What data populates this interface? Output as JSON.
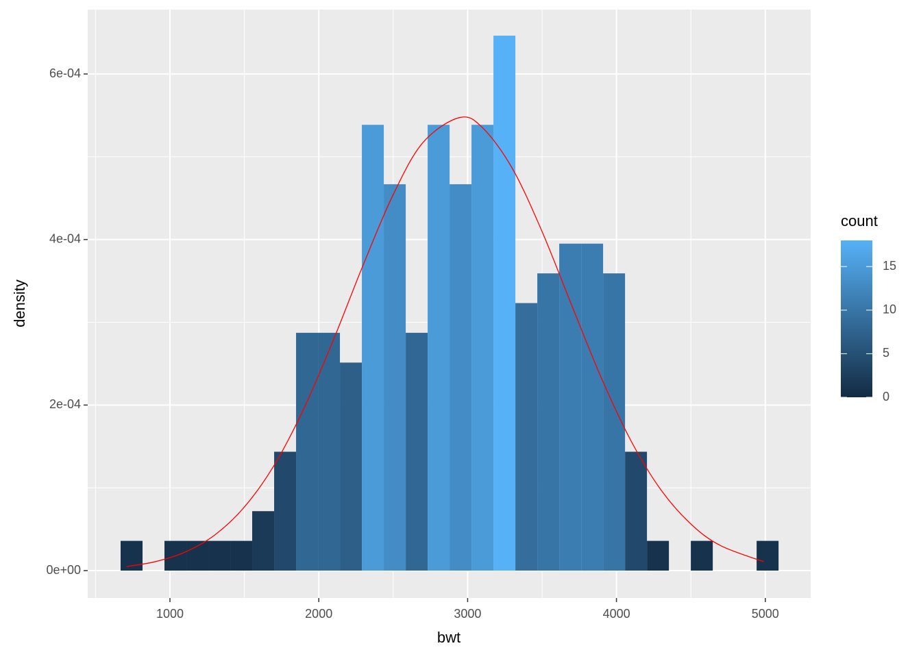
{
  "chart_data": {
    "type": "histogram",
    "xlabel": "bwt",
    "ylabel": "density",
    "bins": [
      668.5,
      815.9,
      963.2,
      1110.6,
      1257.9,
      1405.3,
      1552.6,
      1700.0,
      1847.3,
      1994.7,
      2142.0,
      2289.4,
      2436.7,
      2584.1,
      2731.4,
      2878.8,
      3026.1,
      3173.5,
      3320.8,
      3468.2,
      3615.5,
      3762.9,
      3910.2,
      4057.6,
      4204.9,
      4352.3,
      4499.6,
      4647.0,
      4794.3,
      4941.7,
      5089.0
    ],
    "values": [
      3.591e-05,
      0,
      3.591e-05,
      3.591e-05,
      3.591e-05,
      3.591e-05,
      7.181e-05,
      0.0001436,
      0.0002873,
      0.0002873,
      0.0002513,
      0.0005386,
      0.0004668,
      0.0002873,
      0.0005386,
      0.0004668,
      0.0005386,
      0.0006463,
      0.0003232,
      0.0003591,
      0.000395,
      0.000395,
      0.0003591,
      0.0001436,
      3.591e-05,
      0,
      3.591e-05,
      0,
      0,
      3.591e-05
    ],
    "fill_values": [
      1,
      0,
      1,
      1,
      1,
      1,
      2,
      4,
      8,
      8,
      7,
      15,
      13,
      8,
      15,
      13,
      15,
      18,
      9,
      10,
      11,
      11,
      10,
      4,
      1,
      0,
      1,
      0,
      0,
      1
    ],
    "fill_title": "count",
    "fill_range": [
      0,
      18
    ],
    "fill_ticks": [
      0,
      5,
      10,
      15
    ],
    "fill_colors": [
      "#132B43",
      "#56B1F7"
    ],
    "curve": {
      "color": "#FF0000",
      "x": [
        709,
        900,
        1100,
        1300,
        1500,
        1700,
        1900,
        2100,
        2300,
        2500,
        2700,
        2945,
        3100,
        3300,
        3500,
        3700,
        3900,
        4100,
        4300,
        4500,
        4700,
        4990
      ],
      "values": [
        4.96e-06,
        1.071e-05,
        2.223e-05,
        4.285e-05,
        7.678e-05,
        0.0001272,
        0.0001959,
        0.0002795,
        0.00037,
        0.0004543,
        0.0005172,
        0.0005473,
        0.0005351,
        0.000486,
        0.0004097,
        0.0003202,
        0.0002321,
        0.000156,
        9.72e-05,
        5.626e-05,
        3.016e-05,
        1.071e-05
      ]
    },
    "xlim": [
      447.5,
      5304.8
    ],
    "xticks": [
      1000,
      2000,
      3000,
      4000,
      5000
    ],
    "xminor": [
      500,
      1500,
      2500,
      3500,
      4500
    ],
    "ylim": [
      -3.31e-05,
      0.0006778
    ],
    "yticks": [
      {
        "value": 0,
        "label": "0e+00"
      },
      {
        "value": 0.0002,
        "label": "2e-04"
      },
      {
        "value": 0.0004,
        "label": "4e-04"
      },
      {
        "value": 0.0006,
        "label": "6e-04"
      }
    ],
    "yminor": [
      0.0001,
      0.0003,
      0.0005
    ],
    "grid": true
  }
}
